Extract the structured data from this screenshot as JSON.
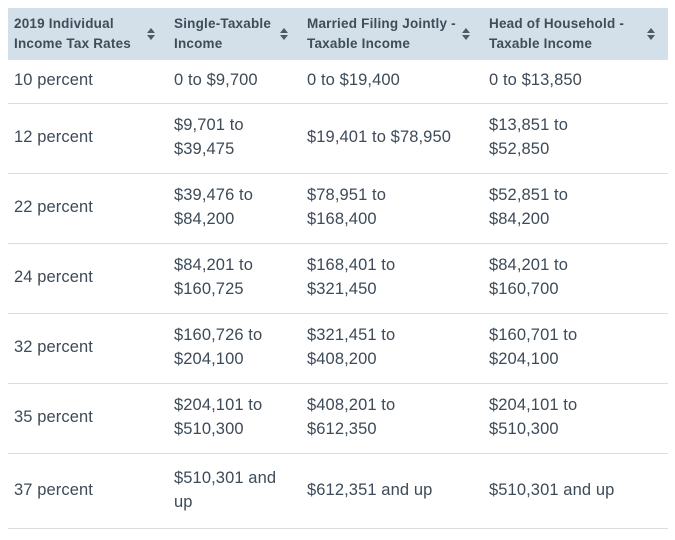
{
  "colors": {
    "header_bg": "#d3e0e9",
    "text": "#3d4a57",
    "header_text": "#3e4d5a",
    "separator": "#d8dde1",
    "arrow": "#4e5a66",
    "page_bg": "#ffffff"
  },
  "table": {
    "columns": [
      {
        "label": "2019 Individual\nIncome Tax Rates",
        "sort_icon": "sort-arrows"
      },
      {
        "label": "Single-Taxable\nIncome",
        "sort_icon": "sort-arrows"
      },
      {
        "label": "Married Filing Jointly -\nTaxable Income",
        "sort_icon": "sort-arrows"
      },
      {
        "label": "Head of Household -\nTaxable Income",
        "sort_icon": "sort-arrows"
      }
    ],
    "rows": [
      {
        "rate": "10 percent",
        "single": "0 to $9,700",
        "married": "0 to $19,400",
        "head": "0 to $13,850"
      },
      {
        "rate": "12 percent",
        "single": "$9,701 to\n$39,475",
        "married": "$19,401 to $78,950",
        "head": "$13,851 to\n$52,850"
      },
      {
        "rate": "22 percent",
        "single": "$39,476 to\n$84,200",
        "married": "$78,951 to\n$168,400",
        "head": "$52,851 to\n$84,200"
      },
      {
        "rate": "24 percent",
        "single": "$84,201 to\n$160,725",
        "married": "$168,401 to\n$321,450",
        "head": "$84,201 to\n$160,700"
      },
      {
        "rate": "32 percent",
        "single": "$160,726 to\n$204,100",
        "married": "$321,451 to\n$408,200",
        "head": "$160,701 to\n$204,100"
      },
      {
        "rate": "35 percent",
        "single": "$204,101 to\n$510,300",
        "married": "$408,201 to\n$612,350",
        "head": "$204,101 to\n$510,300"
      },
      {
        "rate": "37 percent",
        "single": "$510,301 and\nup",
        "married": "$612,351 and up",
        "head": "$510,301 and up"
      }
    ]
  }
}
